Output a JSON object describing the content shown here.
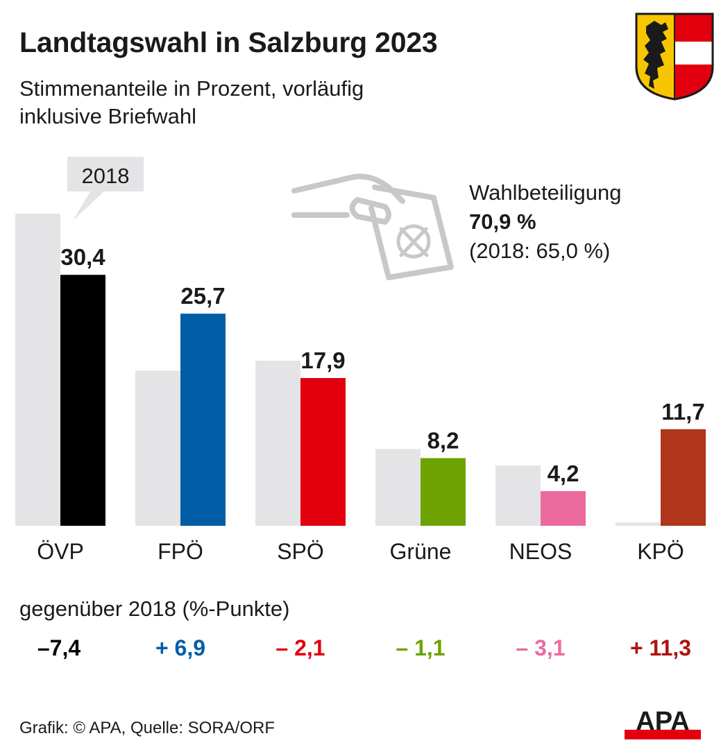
{
  "title": "Landtagswahl in Salzburg 2023",
  "subtitle_line1": "Stimmenanteile in Prozent, vorläufig",
  "subtitle_line2": "inklusive Briefwahl",
  "turnout": {
    "label": "Wahlbeteiligung",
    "value": "70,9 %",
    "previous": "(2018: 65,0  %)",
    "value_num": 70.9,
    "previous_num": 65.0
  },
  "changes_title": "gegenüber 2018 (%-Punkte)",
  "footer": "Grafik: © APA, Quelle: SORA/ORF",
  "logo_text": "APA",
  "chart_data": {
    "type": "bar",
    "categories": [
      "ÖVP",
      "FPÖ",
      "SPÖ",
      "Grüne",
      "NEOS",
      "KPÖ"
    ],
    "series": [
      {
        "name": "2018",
        "values": [
          37.8,
          18.8,
          20.0,
          9.3,
          7.3,
          0.4
        ],
        "color": "#e4e4e6"
      },
      {
        "values": [
          30.4,
          25.7,
          17.9,
          8.2,
          4.2,
          11.7
        ],
        "labels": [
          "30,4",
          "25,7",
          "17,9",
          "8,2",
          "4,2",
          "11,7"
        ],
        "colors": [
          "#000000",
          "#005ea7",
          "#e2000f",
          "#6da300",
          "#ec6b9f",
          "#b0351b"
        ]
      }
    ],
    "changes": [
      "–7,4",
      "+ 6,9",
      "– 2,1",
      "– 1,1",
      "– 3,1",
      "+ 11,3"
    ],
    "change_colors": [
      "#000000",
      "#005ea7",
      "#e2000f",
      "#6da300",
      "#ec6b9f",
      "#b0120e"
    ],
    "legend_label": "2018",
    "ylim": [
      0,
      40
    ]
  }
}
